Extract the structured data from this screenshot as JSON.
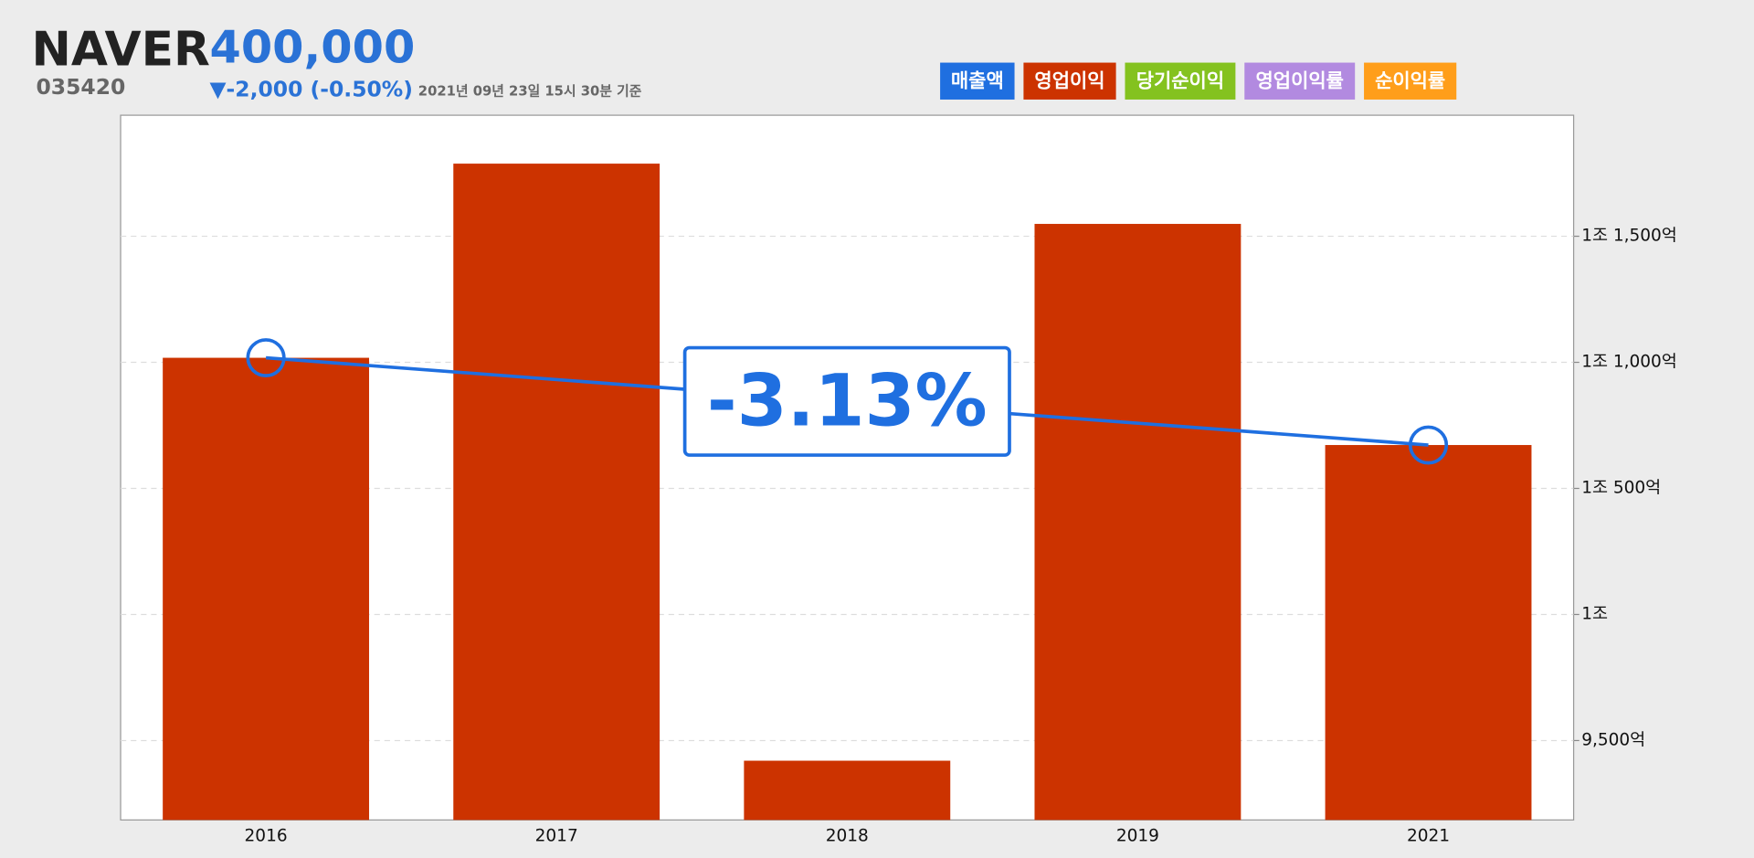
{
  "chart_data": {
    "type": "bar",
    "header": {
      "name": "NAVER",
      "price": "400,000",
      "code": "035420",
      "change": "▼-2,000 (-0.50%)",
      "timestamp": "2021년 09년 23일 15시 30분 기준"
    },
    "legend": [
      {
        "name": "매출액",
        "color": "#1f6fe0"
      },
      {
        "name": "영업이익",
        "color": "#cc3300"
      },
      {
        "name": "당기순이익",
        "color": "#84c21f"
      },
      {
        "name": "영업이익률",
        "color": "#b28ae0"
      },
      {
        "name": "순이익률",
        "color": "#ff9e1a"
      }
    ],
    "categories": [
      "2016",
      "2017",
      "2018",
      "2019",
      "2021"
    ],
    "values": [
      11018,
      11788,
      9420,
      11549,
      10672
    ],
    "color": "#cc3300",
    "trend": {
      "categories": [
        "2016",
        "2021"
      ],
      "values": [
        11018,
        10672
      ],
      "color": "#1f6fe0",
      "annotation": "-3.13%"
    },
    "ylim": [
      9185,
      11980
    ],
    "yticks": [
      {
        "value": 9500,
        "label": "9,500억"
      },
      {
        "value": 10000,
        "label": "1조"
      },
      {
        "value": 10500,
        "label": "1조 500억"
      },
      {
        "value": 11000,
        "label": "1조 1,000억"
      },
      {
        "value": 11500,
        "label": "1조 1,500억"
      }
    ],
    "grid": true
  }
}
